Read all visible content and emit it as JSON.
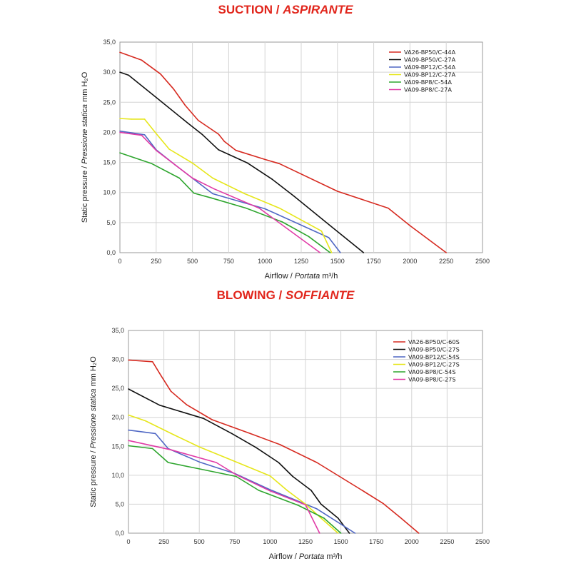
{
  "chart_data": [
    {
      "type": "line",
      "title": "SUCTION",
      "title_italic": "ASPIRANTE",
      "title_sep": " / ",
      "xlabel": "Airflow",
      "xlabel_italic": "Portata",
      "xlabel_unit": "m³/h",
      "ylabel": "Static pressure",
      "ylabel_italic": "Pressione statica",
      "ylabel_unit": "mm H₂O",
      "label_sep": " / ",
      "xlim": [
        0,
        2500
      ],
      "ylim": [
        0,
        35
      ],
      "xticks": [
        "0",
        "250",
        "500",
        "750",
        "1000",
        "1250",
        "1500",
        "1750",
        "2000",
        "2250",
        "2500"
      ],
      "yticks": [
        "0,0",
        "5,0",
        "10,0",
        "15,0",
        "20,0",
        "25,0",
        "30,0",
        "35,0"
      ],
      "grid": true,
      "legend_position": "top-right",
      "series": [
        {
          "name": "VA26-BP50/C-44A",
          "color": "#d62a20",
          "x": [
            0,
            150,
            280,
            370,
            450,
            540,
            680,
            720,
            800,
            1000,
            1100,
            1500,
            1850,
            2000,
            2250
          ],
          "y": [
            33.3,
            32,
            29.7,
            27.2,
            24.5,
            22,
            19.7,
            18.5,
            17,
            15.5,
            14.8,
            10.2,
            7.4,
            4.5,
            0
          ]
        },
        {
          "name": "VA09-BP50/C-27A",
          "color": "#111111",
          "x": [
            0,
            60,
            250,
            470,
            570,
            680,
            880,
            1050,
            1200,
            1450,
            1680
          ],
          "y": [
            30,
            29.5,
            25.8,
            21.5,
            19.6,
            17.1,
            14.9,
            12.2,
            9.4,
            4.5,
            0
          ]
        },
        {
          "name": "VA09-BP12/C-54A",
          "color": "#4f67c4",
          "x": [
            0,
            170,
            250,
            380,
            640,
            1000,
            1440,
            1520
          ],
          "y": [
            20.2,
            19.6,
            17.1,
            14.6,
            9.8,
            7.3,
            2.5,
            0
          ]
        },
        {
          "name": "VA09-BP12/C-27A",
          "color": "#e6e61a",
          "x": [
            0,
            80,
            170,
            250,
            340,
            500,
            640,
            860,
            1100,
            1390,
            1460
          ],
          "y": [
            22.3,
            22.2,
            22.2,
            19.8,
            17.2,
            14.9,
            12.4,
            9.8,
            7.4,
            3.6,
            0
          ]
        },
        {
          "name": "VA09-BP8/C-54A",
          "color": "#2ea52e",
          "x": [
            0,
            220,
            410,
            510,
            630,
            870,
            1120,
            1300,
            1450
          ],
          "y": [
            16.6,
            14.8,
            12.4,
            9.9,
            9.1,
            7.4,
            5.1,
            2.7,
            0
          ]
        },
        {
          "name": "VA09-BP8/C-27A",
          "color": "#e03aa6",
          "x": [
            0,
            150,
            250,
            380,
            500,
            650,
            960,
            1380
          ],
          "y": [
            20,
            19.5,
            17,
            14.6,
            12.4,
            10.6,
            7.4,
            0
          ]
        }
      ]
    },
    {
      "type": "line",
      "title": "BLOWING",
      "title_italic": "SOFFIANTE",
      "title_sep": " / ",
      "xlabel": "Airflow",
      "xlabel_italic": "Portata",
      "xlabel_unit": "m³/h",
      "ylabel": "Static pressure",
      "ylabel_italic": "Pressione statica",
      "ylabel_unit": "mm H₂O",
      "label_sep": " / ",
      "xlim": [
        0,
        2500
      ],
      "ylim": [
        0,
        35
      ],
      "xticks": [
        "0",
        "250",
        "500",
        "750",
        "1000",
        "1250",
        "1500",
        "1750",
        "2000",
        "2250",
        "2500"
      ],
      "yticks": [
        "0,0",
        "5,0",
        "10,0",
        "15,0",
        "20,0",
        "25,0",
        "30,0",
        "35,0"
      ],
      "grid": true,
      "legend_position": "top-right",
      "series": [
        {
          "name": "VA26-BP50/C-60S",
          "color": "#d62a20",
          "x": [
            0,
            170,
            230,
            300,
            410,
            590,
            860,
            1070,
            1330,
            1650,
            1800,
            1920,
            2050
          ],
          "y": [
            29.9,
            29.6,
            27.2,
            24.5,
            22.2,
            19.6,
            17.2,
            15.3,
            12.2,
            7.4,
            5.1,
            2.7,
            0
          ]
        },
        {
          "name": "VA09-BP50/C-27S",
          "color": "#111111",
          "x": [
            0,
            220,
            530,
            730,
            900,
            1060,
            1160,
            1290,
            1360,
            1480,
            1560
          ],
          "y": [
            24.9,
            22.1,
            19.8,
            17.2,
            14.8,
            12.2,
            9.8,
            7.4,
            5,
            2.6,
            0
          ]
        },
        {
          "name": "VA09-BP12/C-54S",
          "color": "#4f67c4",
          "x": [
            0,
            190,
            280,
            500,
            750,
            1000,
            1330,
            1600
          ],
          "y": [
            17.8,
            17.2,
            14.6,
            12.3,
            10.3,
            7.5,
            4.2,
            0
          ]
        },
        {
          "name": "VA09-BP12/C-27S",
          "color": "#e6e61a",
          "x": [
            0,
            120,
            320,
            500,
            750,
            1000,
            1120,
            1250,
            1480
          ],
          "y": [
            20.4,
            19.4,
            17,
            14.9,
            12.4,
            9.9,
            7.4,
            5.0,
            0
          ]
        },
        {
          "name": "VA09-BP8/C-54S",
          "color": "#2ea52e",
          "x": [
            0,
            170,
            280,
            500,
            760,
            920,
            1200,
            1380,
            1500
          ],
          "y": [
            15.1,
            14.6,
            12.2,
            11.1,
            9.8,
            7.4,
            4.8,
            2.6,
            0
          ]
        },
        {
          "name": "VA09-BP8/C-27S",
          "color": "#e03aa6",
          "x": [
            0,
            300,
            620,
            760,
            1000,
            1250,
            1350
          ],
          "y": [
            16.0,
            14.4,
            12.2,
            10.1,
            7.3,
            4.9,
            0
          ]
        }
      ]
    }
  ]
}
